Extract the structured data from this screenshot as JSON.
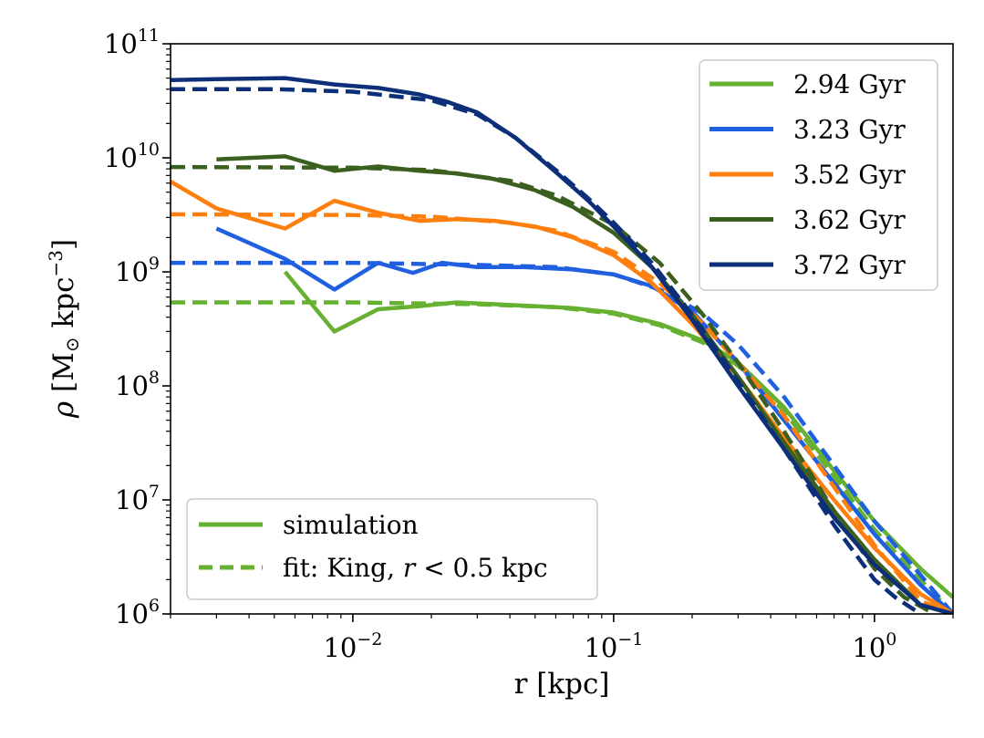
{
  "chart_data": {
    "type": "line",
    "xlabel": "r [kpc]",
    "ylabel": "ρ [M⊙ kpc⁻³]",
    "ylabel_parts": {
      "rho": "ρ",
      "open": " [M",
      "sun": "⊙",
      "unit": " kpc",
      "exp": "−3",
      "close": "]"
    },
    "xscale": "log",
    "yscale": "log",
    "xlim": [
      0.002,
      2.0
    ],
    "ylim": [
      1000000,
      100000000000
    ],
    "xticks": [
      {
        "value": 0.01,
        "base": "10",
        "exp": "−2"
      },
      {
        "value": 0.1,
        "base": "10",
        "exp": "−1"
      },
      {
        "value": 1,
        "base": "10",
        "exp": "0"
      }
    ],
    "yticks": [
      {
        "value": 1000000,
        "base": "10",
        "exp": "6"
      },
      {
        "value": 10000000,
        "base": "10",
        "exp": "7"
      },
      {
        "value": 100000000,
        "base": "10",
        "exp": "8"
      },
      {
        "value": 1000000000,
        "base": "10",
        "exp": "9"
      },
      {
        "value": 10000000000,
        "base": "10",
        "exp": "10"
      },
      {
        "value": 100000000000,
        "base": "10",
        "exp": "11"
      }
    ],
    "legend_series": {
      "position": "upper right",
      "entries": [
        "2.94 Gyr",
        "3.23 Gyr",
        "3.52 Gyr",
        "3.62 Gyr",
        "3.72 Gyr"
      ]
    },
    "legend_styles": {
      "position": "lower left",
      "simulation_label": "simulation",
      "fit_prefix": "fit: King, ",
      "fit_var": "r",
      "fit_suffix": " < 0.5 kpc"
    },
    "series": [
      {
        "name": "2.94 Gyr",
        "color": "#66b032",
        "simulation": {
          "x": [
            0.0055,
            0.0085,
            0.0125,
            0.018,
            0.025,
            0.035,
            0.05,
            0.07,
            0.1,
            0.15,
            0.22,
            0.3,
            0.45,
            0.7,
            1.0,
            1.5,
            2.0
          ],
          "y": [
            1000000000.0,
            300000000.0,
            470000000.0,
            500000000.0,
            540000000.0,
            520000000.0,
            500000000.0,
            480000000.0,
            440000000.0,
            350000000.0,
            250000000.0,
            160000000.0,
            65000000.0,
            18000000.0,
            6500000.0,
            2500000.0,
            1400000.0
          ]
        },
        "fit": {
          "x": [
            0.002,
            0.01,
            0.03,
            0.06,
            0.1,
            0.15,
            0.22,
            0.3,
            0.45,
            0.7,
            1.0,
            1.5,
            2.0
          ],
          "y": [
            540000000.0,
            540000000.0,
            520000000.0,
            490000000.0,
            430000000.0,
            340000000.0,
            240000000.0,
            150000000.0,
            60000000.0,
            16000000.0,
            5500000.0,
            2000000.0,
            1000000.0
          ]
        }
      },
      {
        "name": "3.23 Gyr",
        "color": "#1f5fe0",
        "simulation": {
          "x": [
            0.003,
            0.0055,
            0.0085,
            0.0125,
            0.017,
            0.022,
            0.03,
            0.045,
            0.07,
            0.1,
            0.14,
            0.2,
            0.3,
            0.45,
            0.7,
            1.0,
            1.5,
            2.0
          ],
          "y": [
            2400000000.0,
            1300000000.0,
            700000000.0,
            1200000000.0,
            980000000.0,
            1200000000.0,
            1100000000.0,
            1100000000.0,
            1050000000.0,
            950000000.0,
            750000000.0,
            450000000.0,
            160000000.0,
            50000000.0,
            14000000.0,
            5000000.0,
            1800000.0,
            1000000.0
          ]
        },
        "fit": {
          "x": [
            0.002,
            0.01,
            0.03,
            0.06,
            0.1,
            0.15,
            0.22,
            0.3,
            0.45,
            0.7,
            1.0,
            1.5,
            2.0
          ],
          "y": [
            1200000000.0,
            1200000000.0,
            1150000000.0,
            1100000000.0,
            950000000.0,
            700000000.0,
            430000000.0,
            230000000.0,
            80000000.0,
            20000000.0,
            6500000.0,
            2200000.0,
            1000000.0
          ]
        }
      },
      {
        "name": "3.52 Gyr",
        "color": "#ff7f0e",
        "simulation": {
          "x": [
            0.002,
            0.003,
            0.0055,
            0.0085,
            0.0125,
            0.018,
            0.025,
            0.035,
            0.05,
            0.07,
            0.1,
            0.14,
            0.2,
            0.3,
            0.45,
            0.7,
            1.0,
            1.5,
            2.0
          ],
          "y": [
            6200000000.0,
            3600000000.0,
            2400000000.0,
            4200000000.0,
            3300000000.0,
            2800000000.0,
            2900000000.0,
            2800000000.0,
            2500000000.0,
            2000000000.0,
            1400000000.0,
            800000000.0,
            350000000.0,
            120000000.0,
            35000000.0,
            10000000.0,
            3800000.0,
            1500000.0,
            1000000.0
          ]
        },
        "fit": {
          "x": [
            0.002,
            0.01,
            0.02,
            0.04,
            0.06,
            0.1,
            0.15,
            0.22,
            0.3,
            0.45,
            0.7,
            1.0,
            1.5,
            2.0
          ],
          "y": [
            3200000000.0,
            3150000000.0,
            3050000000.0,
            2700000000.0,
            2300000000.0,
            1500000000.0,
            800000000.0,
            350000000.0,
            160000000.0,
            55000000.0,
            13000000.0,
            4000000.0,
            1300000.0,
            1000000.0
          ]
        }
      },
      {
        "name": "3.62 Gyr",
        "color": "#3a5f1e",
        "simulation": {
          "x": [
            0.003,
            0.0055,
            0.0085,
            0.0125,
            0.018,
            0.025,
            0.035,
            0.05,
            0.07,
            0.1,
            0.14,
            0.2,
            0.3,
            0.45,
            0.7,
            1.0,
            1.5,
            2.0
          ],
          "y": [
            9700000000.0,
            10300000000.0,
            7700000000.0,
            8400000000.0,
            7700000000.0,
            7300000000.0,
            6500000000.0,
            5200000000.0,
            3700000000.0,
            2200000000.0,
            1100000000.0,
            420000000.0,
            120000000.0,
            32000000.0,
            8000000.0,
            3000000.0,
            1200000.0,
            1000000.0
          ]
        },
        "fit": {
          "x": [
            0.002,
            0.01,
            0.02,
            0.04,
            0.06,
            0.1,
            0.15,
            0.22,
            0.3,
            0.45,
            0.7,
            1.0,
            1.3,
            1.7
          ],
          "y": [
            8300000000.0,
            8200000000.0,
            7800000000.0,
            6300000000.0,
            4700000000.0,
            2600000000.0,
            1200000000.0,
            420000000.0,
            160000000.0,
            40000000.0,
            8000000.0,
            2500000.0,
            1400000.0,
            1000000.0
          ]
        }
      },
      {
        "name": "3.72 Gyr",
        "color": "#0d2f7a",
        "simulation": {
          "x": [
            0.002,
            0.003,
            0.0055,
            0.0085,
            0.0125,
            0.018,
            0.023,
            0.03,
            0.042,
            0.06,
            0.08,
            0.1,
            0.14,
            0.2,
            0.3,
            0.45,
            0.7,
            1.0,
            1.5,
            2.0
          ],
          "y": [
            48000000000.0,
            49000000000.0,
            50000000000.0,
            44000000000.0,
            41000000000.0,
            36000000000.0,
            31000000000.0,
            25000000000.0,
            15000000000.0,
            7500000000.0,
            4200000000.0,
            2500000000.0,
            1100000000.0,
            380000000.0,
            100000000.0,
            28000000.0,
            7000000.0,
            2700000.0,
            1200000.0,
            1000000.0
          ]
        },
        "fit": {
          "x": [
            0.002,
            0.005,
            0.01,
            0.02,
            0.03,
            0.042,
            0.06,
            0.08,
            0.1,
            0.14,
            0.2,
            0.3,
            0.45,
            0.7,
            1.0,
            1.2,
            1.5
          ],
          "y": [
            40000000000.0,
            40000000000.0,
            38000000000.0,
            32000000000.0,
            24000000000.0,
            15000000000.0,
            7800000000.0,
            4400000000.0,
            2700000000.0,
            1200000000.0,
            420000000.0,
            110000000.0,
            28000000.0,
            6000000.0,
            2000000.0,
            1400000.0,
            1000000.0
          ]
        }
      }
    ]
  }
}
